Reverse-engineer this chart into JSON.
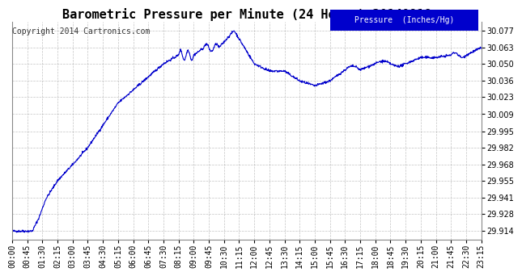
{
  "title": "Barometric Pressure per Minute (24 Hours) 20140918",
  "copyright": "Copyright 2014 Cartronics.com",
  "legend_label": "Pressure  (Inches/Hg)",
  "line_color": "#0000cc",
  "bg_color": "#ffffff",
  "plot_bg_color": "#ffffff",
  "grid_color": "#aaaaaa",
  "legend_bg": "#0000cc",
  "legend_fg": "#ffffff",
  "yticks": [
    29.914,
    29.928,
    29.941,
    29.955,
    29.968,
    29.982,
    29.995,
    30.009,
    30.023,
    30.036,
    30.05,
    30.063,
    30.077
  ],
  "ymin": 29.907,
  "ymax": 30.084,
  "xtick_labels": [
    "00:00",
    "00:45",
    "01:30",
    "02:15",
    "03:00",
    "03:45",
    "04:30",
    "05:15",
    "06:00",
    "06:45",
    "07:30",
    "08:15",
    "09:00",
    "09:45",
    "10:30",
    "11:15",
    "12:00",
    "12:45",
    "13:30",
    "14:15",
    "15:00",
    "15:45",
    "16:30",
    "17:15",
    "18:00",
    "18:45",
    "19:30",
    "20:15",
    "21:00",
    "21:45",
    "22:30",
    "23:15"
  ],
  "title_fontsize": 11,
  "tick_fontsize": 7,
  "copyright_fontsize": 7
}
